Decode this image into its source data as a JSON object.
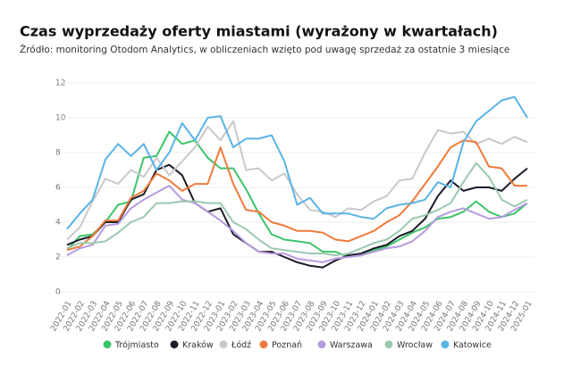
{
  "chart_data": {
    "type": "line",
    "title": "Czas wyprzedaży oferty miastami (wyrażony w kwartałach)",
    "subtitle": "Źródło: monitoring Otodom Analytics, w obliczeniach wzięto pod uwagę sprzedaż za ostatnie 3 miesiące",
    "categories": [
      "2022-01",
      "2022-02",
      "2022-03",
      "2022-04",
      "2022-05",
      "2022-06",
      "2022-07",
      "2022-08",
      "2022-09",
      "2022-10",
      "2022-11",
      "2022-12",
      "2023-01",
      "2023-02",
      "2023-03",
      "2023-04",
      "2023-05",
      "2023-06",
      "2023-07",
      "2023-08",
      "2023-09",
      "2023-10",
      "2023-11",
      "2023-12",
      "2024-01",
      "2024-02",
      "2024-03",
      "2024-04",
      "2024-05",
      "2024-06",
      "2024-07",
      "2024-08",
      "2024-09",
      "2024-10",
      "2024-11",
      "2024-12",
      "2025-01"
    ],
    "series": [
      {
        "name": "Trójmiasto",
        "color": "#3cc46a",
        "values": [
          2.4,
          3.2,
          3.3,
          4.0,
          5.0,
          5.2,
          7.7,
          7.8,
          9.2,
          8.5,
          8.7,
          7.7,
          7.1,
          7.1,
          5.9,
          4.5,
          3.3,
          3.0,
          2.9,
          2.8,
          2.3,
          2.3,
          2.0,
          2.1,
          2.4,
          2.6,
          3.0,
          3.4,
          3.7,
          4.2,
          4.3,
          4.6,
          5.2,
          4.6,
          4.3,
          4.5,
          5.1
        ]
      },
      {
        "name": "Kraków",
        "color": "#1c1c2a",
        "values": [
          2.7,
          3.0,
          3.2,
          4.0,
          4.0,
          5.3,
          5.6,
          7.0,
          7.3,
          6.7,
          5.1,
          4.6,
          4.8,
          3.3,
          2.8,
          2.3,
          2.3,
          2.0,
          1.7,
          1.5,
          1.4,
          1.8,
          2.1,
          2.2,
          2.5,
          2.7,
          3.2,
          3.5,
          4.2,
          5.5,
          6.4,
          5.8,
          6.0,
          6.0,
          5.8,
          6.5,
          7.1
        ]
      },
      {
        "name": "Łódź",
        "color": "#c9c9c9",
        "values": [
          3.0,
          3.7,
          5.2,
          6.5,
          6.2,
          7.0,
          6.6,
          7.7,
          6.7,
          7.5,
          8.3,
          9.5,
          8.7,
          9.8,
          7.0,
          7.1,
          6.4,
          6.8,
          5.6,
          4.7,
          4.6,
          4.3,
          4.8,
          4.7,
          5.2,
          5.5,
          6.4,
          6.5,
          8.0,
          9.3,
          9.1,
          9.2,
          8.5,
          8.8,
          8.5,
          8.9,
          8.6
        ]
      },
      {
        "name": "Poznań",
        "color": "#f07a3c",
        "values": [
          2.4,
          2.6,
          3.2,
          4.1,
          4.1,
          5.4,
          5.8,
          6.8,
          6.4,
          5.8,
          6.2,
          6.2,
          8.3,
          6.2,
          4.7,
          4.6,
          4.0,
          3.8,
          3.5,
          3.5,
          3.4,
          3.0,
          2.9,
          3.2,
          3.5,
          4.0,
          4.4,
          5.2,
          6.2,
          7.2,
          8.3,
          8.7,
          8.6,
          7.2,
          7.1,
          6.1,
          6.1
        ]
      },
      {
        "name": "Warszawa",
        "color": "#b79be0",
        "values": [
          2.1,
          2.5,
          2.7,
          3.8,
          3.9,
          4.8,
          5.3,
          5.7,
          6.1,
          5.3,
          5.1,
          4.6,
          4.1,
          3.5,
          2.8,
          2.3,
          2.2,
          2.2,
          1.9,
          1.8,
          1.7,
          1.9,
          2.0,
          2.1,
          2.3,
          2.5,
          2.6,
          2.9,
          3.5,
          4.3,
          4.6,
          4.8,
          4.5,
          4.2,
          4.3,
          4.7,
          5.1
        ]
      },
      {
        "name": "Wrocław",
        "color": "#9cc8b0",
        "values": [
          2.5,
          2.8,
          2.8,
          2.9,
          3.4,
          4.0,
          4.3,
          5.1,
          5.1,
          5.2,
          5.2,
          5.1,
          5.1,
          4.0,
          3.6,
          3.0,
          2.5,
          2.4,
          2.3,
          2.2,
          2.2,
          2.1,
          2.2,
          2.5,
          2.8,
          3.0,
          3.5,
          4.2,
          4.4,
          4.7,
          5.1,
          6.3,
          7.4,
          6.6,
          5.3,
          4.9,
          5.3
        ]
      },
      {
        "name": "Katowice",
        "color": "#5ab4e5",
        "values": [
          3.6,
          4.5,
          5.3,
          7.6,
          8.5,
          7.8,
          8.5,
          7.0,
          8.0,
          9.7,
          8.7,
          10.0,
          10.1,
          8.3,
          8.8,
          8.8,
          9.0,
          7.5,
          5.0,
          5.4,
          4.5,
          4.5,
          4.5,
          4.3,
          4.2,
          4.8,
          5.0,
          5.1,
          5.3,
          6.3,
          6.0,
          8.6,
          9.8,
          10.4,
          11.0,
          11.2,
          10.0
        ]
      }
    ],
    "ylim": [
      0,
      12
    ],
    "yticks": [
      0,
      2,
      4,
      6,
      8,
      10,
      12
    ],
    "grid": true
  }
}
